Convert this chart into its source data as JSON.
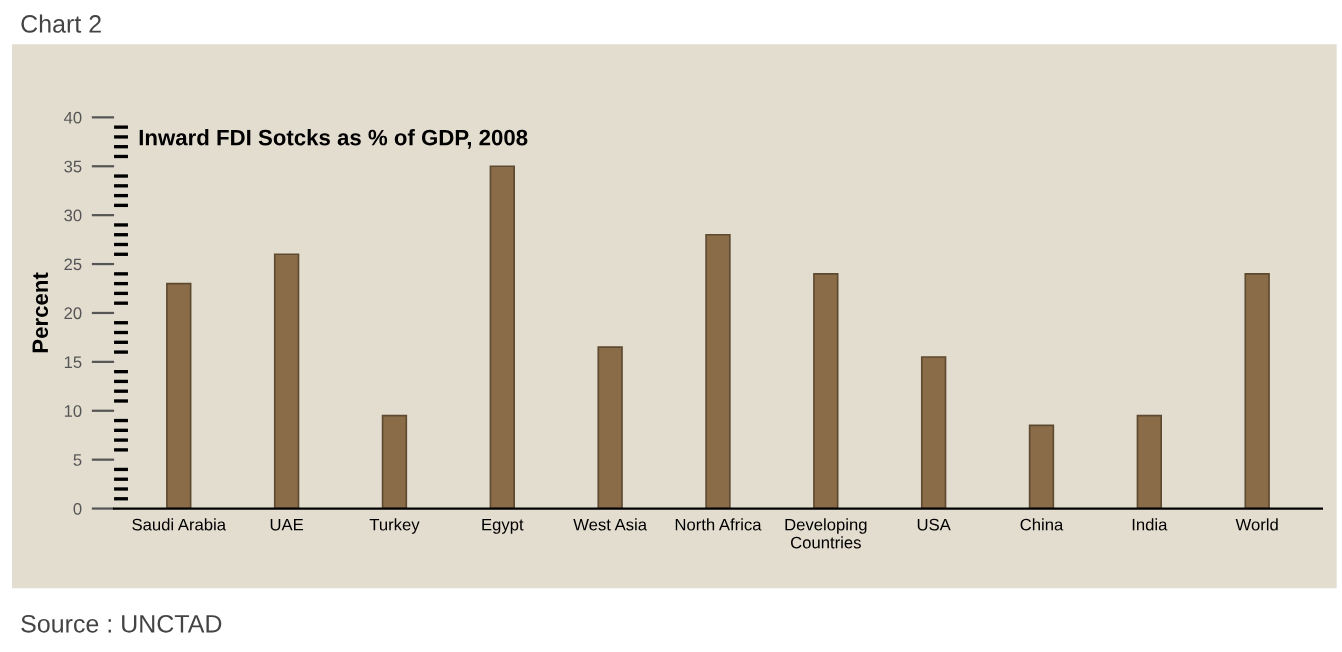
{
  "chart_data": {
    "type": "bar",
    "title": "Inward FDI Sotcks as % of GDP, 2008",
    "subtitle": "Chart 2",
    "ylabel": "Percent",
    "categories": [
      "Saudi Arabia",
      "UAE",
      "Turkey",
      "Egypt",
      "West Asia",
      "North Africa",
      "Developing\nCountries",
      "USA",
      "China",
      "India",
      "World"
    ],
    "values": [
      23,
      26,
      9.5,
      35,
      16.5,
      28,
      24,
      15.5,
      8.5,
      9.5,
      24
    ],
    "color": "#8a6d48",
    "ylim": [
      0,
      40
    ],
    "yticks": [
      0,
      5,
      10,
      15,
      20,
      25,
      30,
      35,
      40
    ],
    "grid": false,
    "annotations": [
      "Source : UNCTAD"
    ]
  }
}
